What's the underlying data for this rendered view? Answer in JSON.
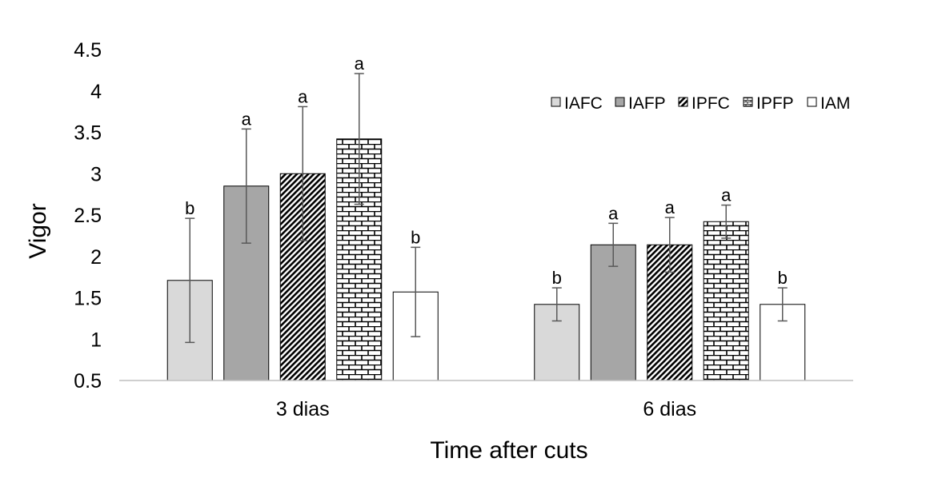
{
  "chart_data": {
    "type": "bar",
    "title": "",
    "xlabel": "Time after cuts",
    "ylabel": "Vigor",
    "categories": [
      "3 dias",
      "6 dias"
    ],
    "ylim": [
      0.5,
      4.5
    ],
    "yticks": [
      "0.5",
      "1",
      "1.5",
      "2",
      "2.5",
      "3",
      "3.5",
      "4",
      "4.5"
    ],
    "grid": false,
    "legend_position": "top-right",
    "series": [
      {
        "name": "IAFC",
        "values": [
          1.71,
          1.42
        ],
        "errors": [
          0.75,
          0.2
        ],
        "letters": [
          "b",
          "b"
        ],
        "fill": "#d9d9d9",
        "pattern": "solid"
      },
      {
        "name": "IAFP",
        "values": [
          2.85,
          2.14
        ],
        "errors": [
          0.69,
          0.26
        ],
        "letters": [
          "a",
          "a"
        ],
        "fill": "#a6a6a6",
        "pattern": "solid"
      },
      {
        "name": "IPFC",
        "values": [
          3.0,
          2.14
        ],
        "errors": [
          0.81,
          0.33
        ],
        "letters": [
          "a",
          "a"
        ],
        "fill": "#ffffff",
        "pattern": "diagonal"
      },
      {
        "name": "IPFP",
        "values": [
          3.42,
          2.42
        ],
        "errors": [
          0.79,
          0.2
        ],
        "letters": [
          "a",
          "a"
        ],
        "fill": "#ffffff",
        "pattern": "brick"
      },
      {
        "name": "IAM",
        "values": [
          1.57,
          1.42
        ],
        "errors": [
          0.54,
          0.2
        ],
        "letters": [
          "b",
          "b"
        ],
        "fill": "#ffffff",
        "pattern": "solid"
      }
    ]
  }
}
